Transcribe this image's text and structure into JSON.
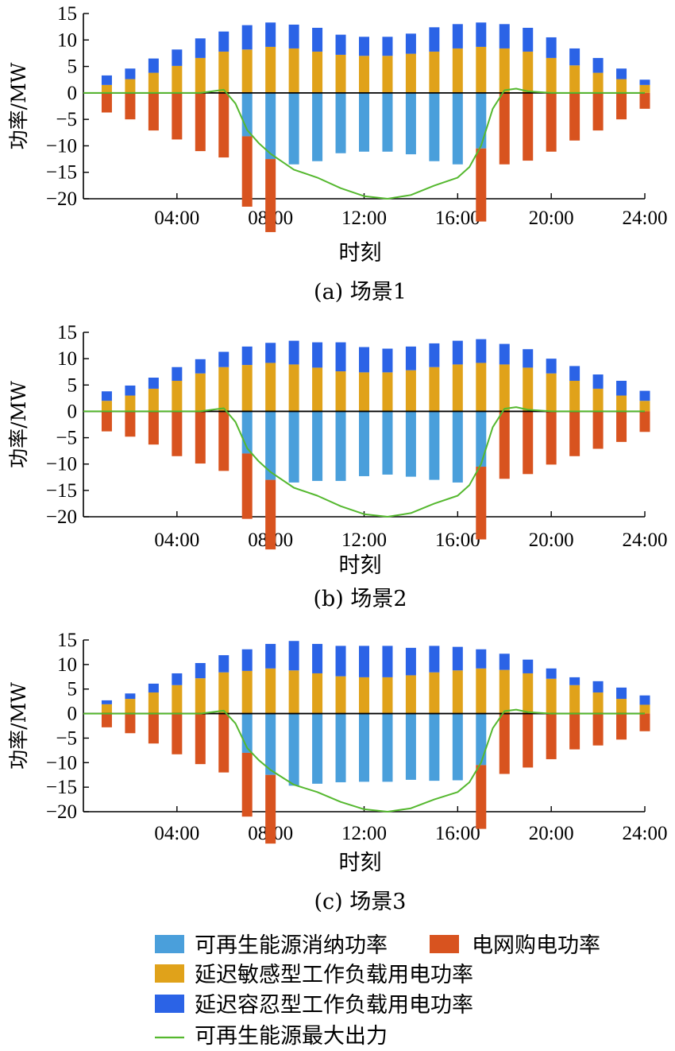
{
  "colors": {
    "renewable": "#4a9fdb",
    "grid": "#d8531f",
    "sensitive": "#e0a21a",
    "tolerant": "#2b63e6",
    "max_output": "#55b82f"
  },
  "legend": {
    "renewable": "可再生能源消纳功率",
    "grid": "电网购电功率",
    "sensitive": "延迟敏感型工作负载用电功率",
    "tolerant": "延迟容忍型工作负载用电功率",
    "max_output": "可再生能源最大出力"
  },
  "chart_data": [
    {
      "type": "bar",
      "caption": "(a) 场景1",
      "xlabel": "时刻",
      "ylabel": "功率/MW",
      "ylim": [
        -20,
        15
      ],
      "yticks": [
        15,
        10,
        5,
        0,
        -5,
        -10,
        -15,
        -20
      ],
      "xlim": [
        0,
        24
      ],
      "xtick_labels": [
        "04:00",
        "08:00",
        "12:00",
        "16:00",
        "20:00",
        "24:00"
      ],
      "x": [
        1,
        2,
        3,
        4,
        5,
        6,
        7,
        8,
        9,
        10,
        11,
        12,
        13,
        14,
        15,
        16,
        17,
        18,
        19,
        20,
        21,
        22,
        23,
        24
      ],
      "series": [
        {
          "key": "sensitive",
          "values": [
            1.5,
            2.6,
            3.8,
            5.1,
            6.6,
            7.8,
            8.2,
            8.7,
            8.4,
            7.8,
            7.2,
            7.0,
            7.0,
            7.4,
            7.8,
            8.4,
            8.7,
            8.4,
            7.8,
            6.6,
            5.2,
            3.8,
            2.6,
            1.5
          ]
        },
        {
          "key": "tolerant",
          "values": [
            1.8,
            2.0,
            2.7,
            3.1,
            3.7,
            3.8,
            4.6,
            4.6,
            4.5,
            4.5,
            3.8,
            3.6,
            3.6,
            3.8,
            4.6,
            4.6,
            4.6,
            4.6,
            4.5,
            3.9,
            3.2,
            2.8,
            2.0,
            1.0
          ]
        },
        {
          "key": "grid",
          "values": [
            -3.7,
            -5.0,
            -7.1,
            -8.8,
            -11.0,
            -12.2,
            -13.3,
            -13.8,
            0,
            0,
            0,
            0,
            0,
            0,
            0,
            0,
            -13.8,
            -13.5,
            -12.8,
            -11.1,
            -9.0,
            -7.1,
            -5.0,
            -3.0
          ]
        },
        {
          "key": "renewable",
          "values": [
            0,
            0,
            0,
            0,
            0,
            0,
            -8.2,
            -12.5,
            -13.5,
            -12.9,
            -11.4,
            -11.1,
            -11.1,
            -11.6,
            -12.9,
            -13.5,
            -10.5,
            0,
            0,
            0,
            0,
            0,
            0,
            0
          ]
        }
      ],
      "max_output_line": {
        "x": [
          0,
          1,
          2,
          3,
          4,
          5,
          5.5,
          6,
          6.5,
          7,
          7.5,
          8,
          9,
          10,
          11,
          12,
          13,
          14,
          15,
          16,
          16.5,
          17,
          17.5,
          18,
          18.5,
          19,
          20,
          21,
          22,
          23,
          24
        ],
        "y": [
          0,
          0,
          0,
          0,
          0,
          0,
          0.3,
          0.6,
          -2,
          -7,
          -9.5,
          -11.5,
          -14.5,
          -16,
          -18,
          -19.5,
          -20,
          -19.3,
          -17.5,
          -16,
          -14,
          -10,
          -3,
          0.5,
          0.8,
          0.3,
          0,
          0,
          0,
          0,
          0
        ]
      }
    },
    {
      "type": "bar",
      "caption": "(b) 场景2",
      "xlabel": "时刻",
      "ylabel": "功率/MW",
      "ylim": [
        -20,
        15
      ],
      "yticks": [
        15,
        10,
        5,
        0,
        -5,
        -10,
        -15,
        -20
      ],
      "xlim": [
        0,
        24
      ],
      "xtick_labels": [
        "04:00",
        "08:00",
        "12:00",
        "16:00",
        "20:00",
        "24:00"
      ],
      "x": [
        1,
        2,
        3,
        4,
        5,
        6,
        7,
        8,
        9,
        10,
        11,
        12,
        13,
        14,
        15,
        16,
        17,
        18,
        19,
        20,
        21,
        22,
        23,
        24
      ],
      "series": [
        {
          "key": "sensitive",
          "values": [
            2.0,
            3.0,
            4.3,
            5.8,
            7.2,
            8.4,
            8.8,
            9.2,
            8.9,
            8.3,
            7.6,
            7.4,
            7.4,
            7.8,
            8.4,
            8.9,
            9.2,
            8.9,
            8.3,
            7.2,
            5.8,
            4.3,
            3.0,
            2.0
          ]
        },
        {
          "key": "tolerant",
          "values": [
            1.8,
            1.9,
            2.1,
            2.6,
            2.7,
            2.9,
            3.5,
            3.8,
            4.5,
            4.8,
            5.5,
            4.8,
            4.5,
            4.5,
            4.5,
            4.5,
            4.5,
            3.9,
            3.5,
            2.8,
            2.8,
            2.7,
            2.8,
            1.9
          ]
        },
        {
          "key": "grid",
          "values": [
            -3.8,
            -4.8,
            -6.3,
            -8.5,
            -9.9,
            -11.3,
            -12.4,
            -13.2,
            0,
            0,
            0,
            0,
            0,
            0,
            0,
            0,
            -13.8,
            -12.8,
            -11.9,
            -10.1,
            -8.5,
            -7.1,
            -5.8,
            -3.9
          ]
        },
        {
          "key": "renewable",
          "values": [
            0,
            0,
            0,
            0,
            0,
            0,
            -8.0,
            -13.0,
            -13.5,
            -13.2,
            -13.2,
            -12.3,
            -12.0,
            -12.4,
            -13.0,
            -13.5,
            -10.5,
            0,
            0,
            0,
            0,
            0,
            0,
            0
          ]
        }
      ],
      "max_output_line": {
        "x": [
          0,
          1,
          2,
          3,
          4,
          5,
          5.5,
          6,
          6.5,
          7,
          7.5,
          8,
          9,
          10,
          11,
          12,
          13,
          14,
          15,
          16,
          16.5,
          17,
          17.5,
          18,
          18.5,
          19,
          20,
          21,
          22,
          23,
          24
        ],
        "y": [
          0,
          0,
          0,
          0,
          0,
          0,
          0.3,
          0.6,
          -2,
          -7,
          -9.5,
          -11.5,
          -14.5,
          -16,
          -18,
          -19.5,
          -20,
          -19.3,
          -17.5,
          -16,
          -14,
          -10,
          -3,
          0.5,
          0.8,
          0.3,
          0,
          0,
          0,
          0,
          0
        ]
      }
    },
    {
      "type": "bar",
      "caption": "(c) 场景3",
      "xlabel": "时刻",
      "ylabel": "功率/MW",
      "ylim": [
        -20,
        15
      ],
      "yticks": [
        15,
        10,
        5,
        0,
        -5,
        -10,
        -15,
        -20
      ],
      "xlim": [
        0,
        24
      ],
      "xtick_labels": [
        "04:00",
        "08:00",
        "12:00",
        "16:00",
        "20:00",
        "24:00"
      ],
      "x": [
        1,
        2,
        3,
        4,
        5,
        6,
        7,
        8,
        9,
        10,
        11,
        12,
        13,
        14,
        15,
        16,
        17,
        18,
        19,
        20,
        21,
        22,
        23,
        24
      ],
      "series": [
        {
          "key": "sensitive",
          "values": [
            1.9,
            3.0,
            4.3,
            5.8,
            7.2,
            8.4,
            8.7,
            9.2,
            8.8,
            8.2,
            7.6,
            7.4,
            7.4,
            7.8,
            8.4,
            8.8,
            9.2,
            8.9,
            8.2,
            7.1,
            5.8,
            4.3,
            3.0,
            1.8
          ]
        },
        {
          "key": "tolerant",
          "values": [
            0.8,
            1.1,
            1.8,
            2.4,
            3.1,
            3.5,
            4.4,
            5.0,
            6.0,
            6.0,
            6.2,
            6.4,
            6.4,
            5.6,
            5.4,
            4.8,
            3.9,
            3.3,
            2.8,
            2.1,
            1.6,
            2.3,
            2.3,
            1.9
          ]
        },
        {
          "key": "grid",
          "values": [
            -2.8,
            -4.0,
            -6.1,
            -8.3,
            -10.3,
            -12.0,
            -13.0,
            -14.0,
            0,
            0,
            0,
            0,
            0,
            0,
            0,
            0,
            -13.0,
            -12.3,
            -11.0,
            -9.3,
            -7.3,
            -6.5,
            -5.3,
            -3.6
          ]
        },
        {
          "key": "renewable",
          "values": [
            0,
            0,
            0,
            0,
            0,
            0,
            -8.0,
            -12.5,
            -14.7,
            -14.3,
            -14.0,
            -13.9,
            -13.9,
            -13.5,
            -13.7,
            -13.6,
            -10.5,
            0,
            0,
            0,
            0,
            0,
            0,
            0
          ]
        }
      ],
      "max_output_line": {
        "x": [
          0,
          1,
          2,
          3,
          4,
          5,
          5.5,
          6,
          6.5,
          7,
          7.5,
          8,
          9,
          10,
          11,
          12,
          13,
          14,
          15,
          16,
          16.5,
          17,
          17.5,
          18,
          18.5,
          19,
          20,
          21,
          22,
          23,
          24
        ],
        "y": [
          0,
          0,
          0,
          0,
          0,
          0,
          0.3,
          0.6,
          -2,
          -7,
          -9.5,
          -11.5,
          -14.5,
          -16,
          -18,
          -19.5,
          -20,
          -19.3,
          -17.5,
          -16,
          -14,
          -10,
          -3,
          0.5,
          0.8,
          0.3,
          0,
          0,
          0,
          0,
          0
        ]
      }
    }
  ]
}
